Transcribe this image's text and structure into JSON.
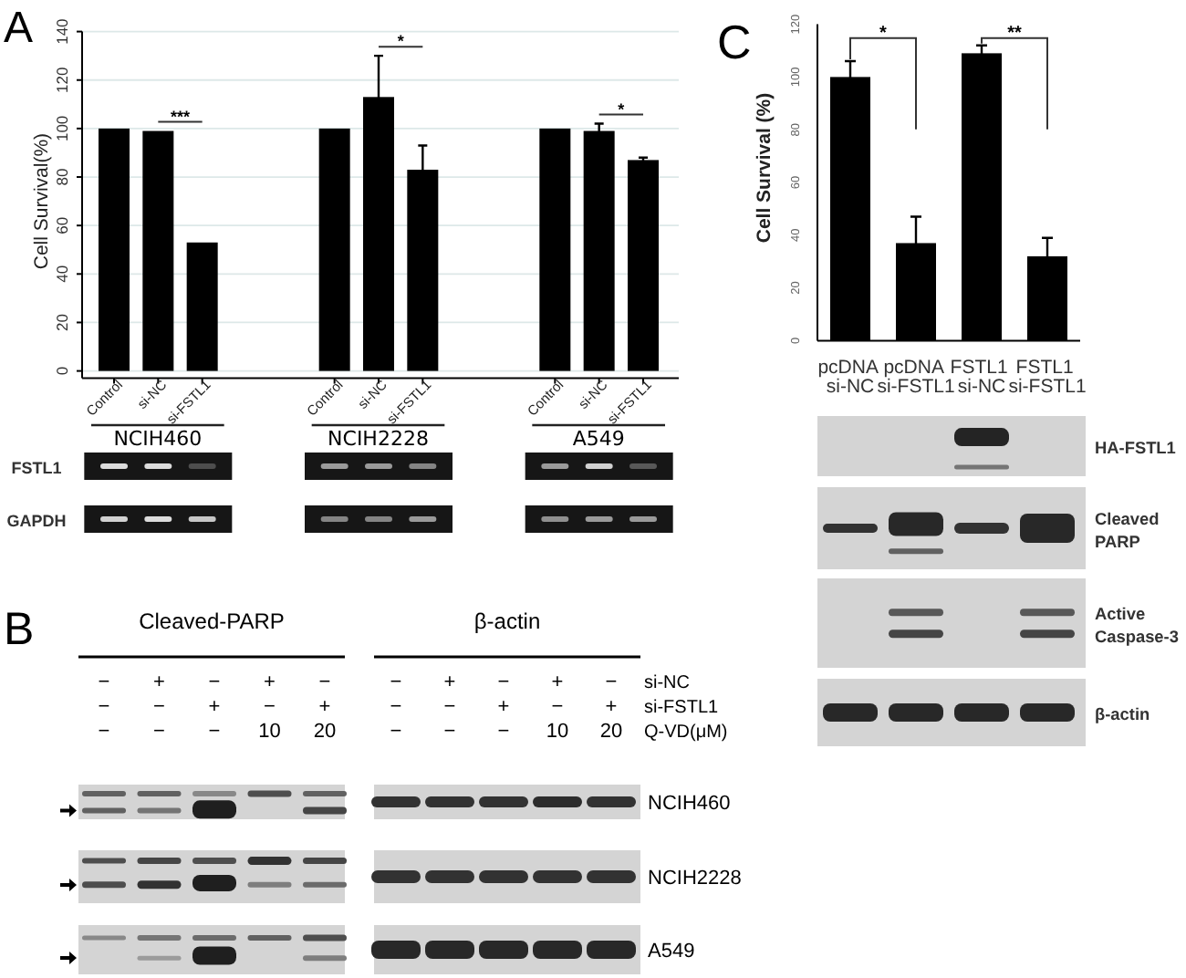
{
  "chart_data": [
    {
      "type": "bar",
      "title": "A",
      "ylabel": "Cell Survival(%)",
      "categories": [
        "Control",
        "si-NC",
        "si-FSTL1",
        null,
        null,
        "Control",
        "si-NC",
        "si-FSTL1",
        null,
        null,
        "Control",
        "si-NC",
        "si-FSTL1"
      ],
      "values": [
        100,
        99,
        53,
        null,
        null,
        100,
        113,
        83,
        null,
        null,
        100,
        99,
        87
      ],
      "errors": [
        null,
        null,
        null,
        null,
        null,
        null,
        17,
        10,
        null,
        null,
        null,
        3,
        1
      ],
      "color": "#000000",
      "ylim": [
        0,
        140
      ],
      "yticks": [
        0,
        20,
        40,
        60,
        80,
        100,
        120,
        140
      ],
      "grid": "y",
      "annotations": [
        "***",
        "*",
        "*",
        "NCIH460",
        "NCIH2228",
        "A549",
        "FSTL1",
        "GAPDH"
      ]
    },
    {
      "type": "other",
      "title": "B",
      "annotations": [
        "Cleaved-PARP",
        "β-actin",
        "si-NC",
        "si-FSTL1",
        "Q-VD(μM)",
        "−",
        "+",
        "−",
        "+",
        "−",
        "−",
        "−",
        "+",
        "−",
        "+",
        "−",
        "−",
        "−",
        "10",
        "20",
        "NCIH460",
        "NCIH2228",
        "A549"
      ]
    },
    {
      "type": "bar",
      "title": "C",
      "ylabel": "Cell Survival (%)",
      "categories": [
        "pcDNA si-NC",
        "pcDNA si-FSTL1",
        "FSTL1 si-NC",
        "FSTL1 si-FSTL1"
      ],
      "values": [
        100,
        37,
        109,
        32
      ],
      "errors": [
        6,
        10,
        3,
        7
      ],
      "color": "#000000",
      "ylim": [
        0,
        120
      ],
      "yticks": [
        0,
        20,
        40,
        60,
        80,
        100,
        120
      ],
      "annotations": [
        "*",
        "**",
        "HA-FSTL1",
        "Cleaved PARP",
        "Active Caspase-3",
        "β-actin"
      ]
    }
  ]
}
